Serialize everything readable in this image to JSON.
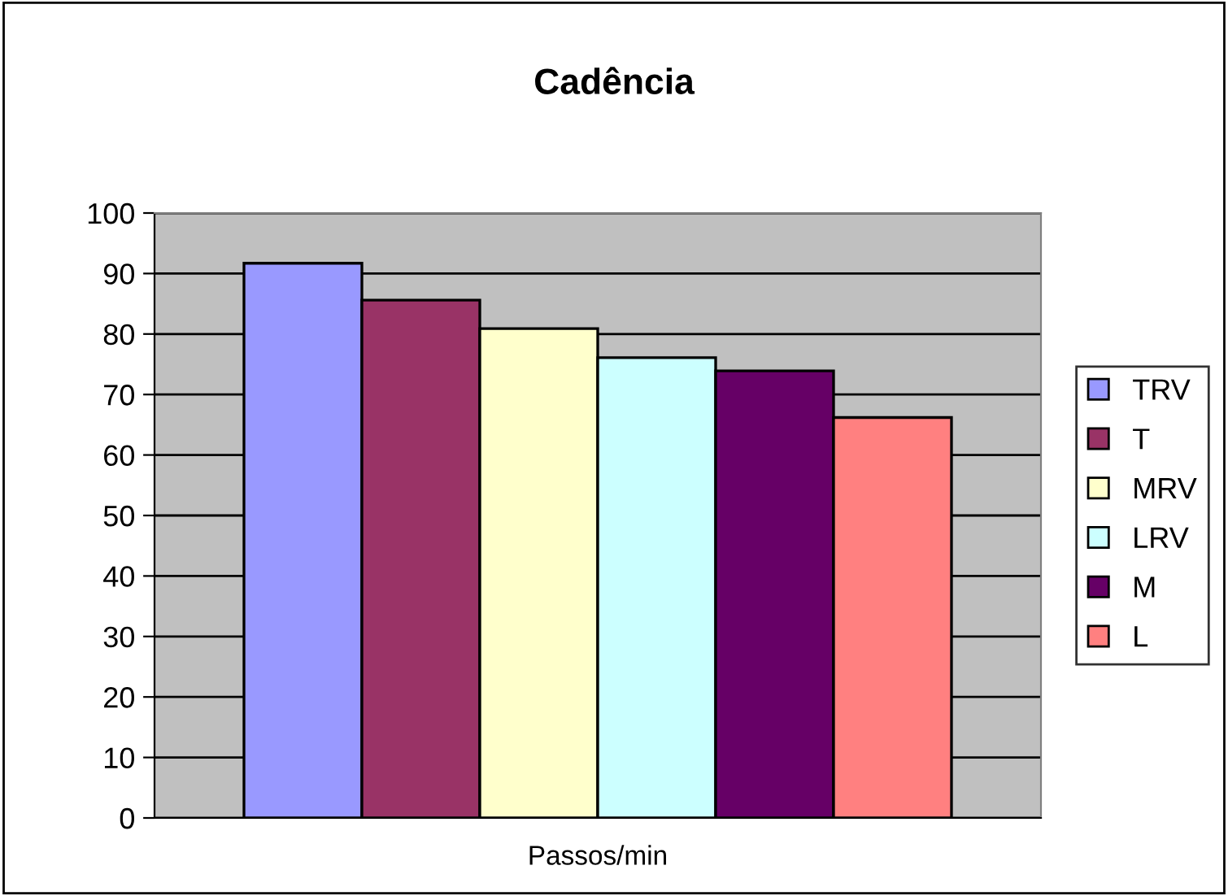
{
  "chart_data": {
    "type": "bar",
    "title": "Cadência",
    "categories": [
      "Passos/min"
    ],
    "series": [
      {
        "name": "TRV",
        "color": "#9999ff",
        "values": [
          91.7
        ]
      },
      {
        "name": "T",
        "color": "#993366",
        "values": [
          85.6
        ]
      },
      {
        "name": "MRV",
        "color": "#ffffcc",
        "values": [
          80.9
        ]
      },
      {
        "name": "LRV",
        "color": "#ccffff",
        "values": [
          76.1
        ]
      },
      {
        "name": "M",
        "color": "#660066",
        "values": [
          73.9
        ]
      },
      {
        "name": "L",
        "color": "#ff8080",
        "values": [
          66.2
        ]
      }
    ],
    "ylim": [
      0,
      100
    ],
    "yticks": [
      0,
      10,
      20,
      30,
      40,
      50,
      60,
      70,
      80,
      90,
      100
    ],
    "grid": "y",
    "legend": "right"
  }
}
